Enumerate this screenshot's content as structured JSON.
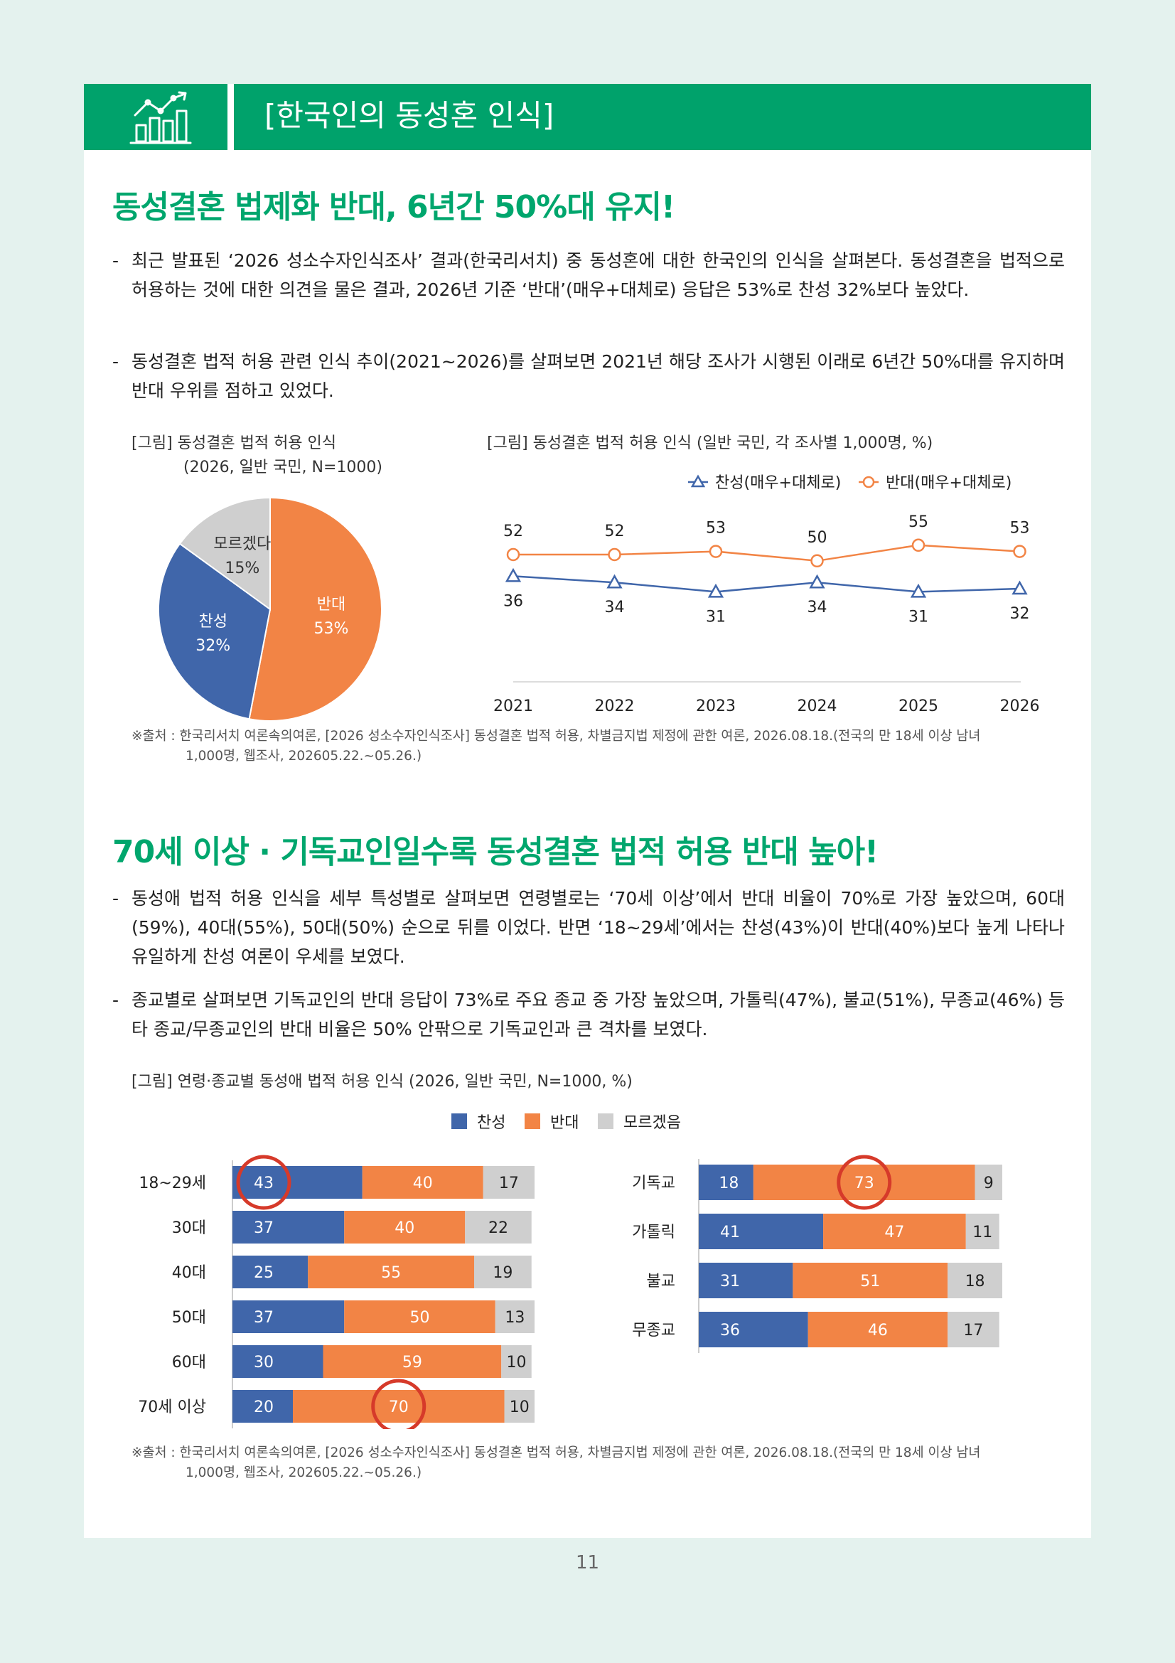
{
  "header": {
    "title": "[한국인의 동성혼 인식]",
    "icon": "chart-icon"
  },
  "section1": {
    "heading": "동성결혼 법제화 반대, 6년간 50%대 유지!",
    "bullets": [
      "최근 발표된 ‘2026 성소수자인식조사’ 결과(한국리서치) 중 동성혼에 대한 한국인의 인식을 살펴본다. 동성결혼을 법적으로 허용하는 것에 대한 의견을 물은 결과, 2026년 기준 ‘반대’(매우+대체로) 응답은 53%로 찬성 32%보다 높았다.",
      "동성결혼 법적 허용 관련 인식 추이(2021~2026)를 살펴보면 2021년 해당 조사가 시행된 이래로 6년간 50%대를 유지하며 반대 우위를 점하고 있었다."
    ],
    "pie_caption_line1": "[그림] 동성결혼 법적 허용 인식",
    "pie_caption_line2": "(2026, 일반 국민, N=1000)",
    "line_caption": "[그림] 동성결혼 법적 허용 인식 (일반 국민, 각 조사별 1,000명, %)",
    "source_line1": "※출처 : 한국리서치 여론속의여론, [2026 성소수자인식조사] 동성결혼 법적 허용, 차별금지법 제정에 관한 여론, 2026.08.18.(전국의 만 18세 이상 남녀",
    "source_line2": "1,000명, 웹조사, 202605.22.~05.26.)"
  },
  "section2": {
    "heading": "70세 이상 · 기독교인일수록 동성결혼 법적 허용 반대 높아!",
    "bullets": [
      "동성애 법적 허용 인식을 세부 특성별로 살펴보면 연령별로는 ‘70세 이상’에서 반대 비율이 70%로 가장 높았으며, 60대(59%), 40대(55%), 50대(50%) 순으로 뒤를 이었다. 반면 ‘18~29세’에서는 찬성(43%)이 반대(40%)보다 높게 나타나 유일하게 찬성 여론이 우세를 보였다.",
      "종교별로 살펴보면 기독교인의 반대 응답이 73%로 주요 종교 중 가장 높았으며, 가톨릭(47%), 불교(51%), 무종교(46%) 등 타 종교/무종교인의 반대 비율은 50% 안팎으로 기독교인과 큰 격차를 보였다."
    ],
    "bar_caption": "[그림] 연령·종교별 동성애 법적 허용 인식 (2026, 일반 국민, N=1000, %)",
    "source_line1": "※출처 : 한국리서치 여론속의여론, [2026 성소수자인식조사] 동성결혼 법적 허용, 차별금지법 제정에 관한 여론, 2026.08.18.(전국의 만 18세 이상 남녀",
    "source_line2": "1,000명, 웹조사, 202605.22.~05.26.)"
  },
  "page_number": "11",
  "chart_data": [
    {
      "type": "pie",
      "slices": [
        {
          "label": "반대",
          "value": 53,
          "display": "53%",
          "color": "#f28445"
        },
        {
          "label": "찬성",
          "value": 32,
          "display": "32%",
          "color": "#4066aa"
        },
        {
          "label": "모르겠다",
          "value": 15,
          "display": "15%",
          "color": "#cfcfcf"
        }
      ]
    },
    {
      "type": "line",
      "x": [
        "2021",
        "2022",
        "2023",
        "2024",
        "2025",
        "2026"
      ],
      "series": [
        {
          "name": "찬성(매우+대체로)",
          "values": [
            36,
            34,
            31,
            34,
            31,
            32
          ],
          "color": "#4066aa",
          "marker": "triangle"
        },
        {
          "name": "반대(매우+대체로)",
          "values": [
            52,
            52,
            53,
            50,
            55,
            53
          ],
          "color": "#f28445",
          "marker": "circle"
        }
      ],
      "legend": "top-right"
    },
    {
      "type": "bar",
      "stacked": true,
      "orientation": "horizontal",
      "categories": [
        "18~29세",
        "30대",
        "40대",
        "50대",
        "60대",
        "70세 이상"
      ],
      "series": [
        {
          "name": "찬성",
          "values": [
            43,
            37,
            25,
            37,
            30,
            20
          ],
          "color": "#4066aa"
        },
        {
          "name": "반대",
          "values": [
            40,
            40,
            55,
            50,
            59,
            70
          ],
          "color": "#f28445"
        },
        {
          "name": "모르겠음",
          "values": [
            17,
            22,
            19,
            13,
            10,
            10
          ],
          "color": "#cfcfcf"
        }
      ],
      "highlight": [
        [
          0,
          0
        ],
        [
          5,
          1
        ]
      ],
      "legend": "top-center"
    },
    {
      "type": "bar",
      "stacked": true,
      "orientation": "horizontal",
      "categories": [
        "기독교",
        "가톨릭",
        "불교",
        "무종교"
      ],
      "series": [
        {
          "name": "찬성",
          "values": [
            18,
            41,
            31,
            36
          ],
          "color": "#4066aa"
        },
        {
          "name": "반대",
          "values": [
            73,
            47,
            51,
            46
          ],
          "color": "#f28445"
        },
        {
          "name": "모르겠음",
          "values": [
            9,
            11,
            18,
            17
          ],
          "color": "#cfcfcf"
        }
      ],
      "highlight": [
        [
          0,
          1
        ]
      ]
    }
  ]
}
